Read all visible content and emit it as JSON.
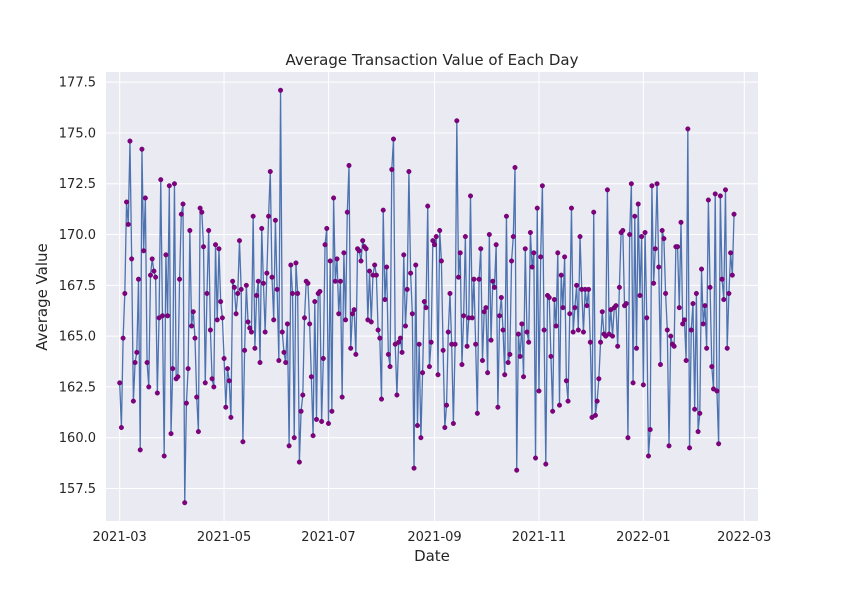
{
  "chart_data": {
    "type": "line",
    "title": "Average Transaction Value of Each Day",
    "xlabel": "Date",
    "ylabel": "Average Value",
    "x_range": [
      "2021-02-21",
      "2022-03-09"
    ],
    "ylim": [
      155.9,
      178.0
    ],
    "x_ticks": [
      {
        "date": "2021-03-01",
        "label": "2021-03"
      },
      {
        "date": "2021-05-01",
        "label": "2021-05"
      },
      {
        "date": "2021-07-01",
        "label": "2021-07"
      },
      {
        "date": "2021-09-01",
        "label": "2021-09"
      },
      {
        "date": "2021-11-01",
        "label": "2021-11"
      },
      {
        "date": "2022-01-01",
        "label": "2022-01"
      },
      {
        "date": "2022-03-01",
        "label": "2022-03"
      }
    ],
    "y_ticks": [
      {
        "value": 157.5,
        "label": "157.5"
      },
      {
        "value": 160.0,
        "label": "160.0"
      },
      {
        "value": 162.5,
        "label": "162.5"
      },
      {
        "value": 165.0,
        "label": "165.0"
      },
      {
        "value": 167.5,
        "label": "167.5"
      },
      {
        "value": 170.0,
        "label": "170.0"
      },
      {
        "value": 172.5,
        "label": "172.5"
      },
      {
        "value": 175.0,
        "label": "175.0"
      },
      {
        "value": 177.5,
        "label": "177.5"
      }
    ],
    "grid": true,
    "colors": {
      "background": "#eaeaf2",
      "grid": "#ffffff",
      "line": "#4c72b0",
      "marker": "#800080"
    },
    "series": [
      {
        "start_date": "2021-03-01",
        "values": [
          162.7,
          160.5,
          164.9,
          167.1,
          171.6,
          170.5,
          174.6,
          168.8,
          161.8,
          163.7,
          164.2,
          167.8,
          159.4,
          174.2,
          169.2,
          171.8,
          163.7,
          162.5,
          168.0,
          168.8,
          168.2,
          167.9,
          162.2,
          165.9,
          172.7,
          166.0,
          159.1,
          169.0,
          166.0,
          172.4,
          160.2,
          163.4,
          172.5,
          162.9,
          163.0,
          167.8,
          171.0,
          171.5,
          156.8,
          161.7,
          163.4,
          170.2,
          165.5,
          166.2,
          164.9,
          162.0,
          160.3,
          171.3,
          171.1,
          169.4,
          162.7,
          167.1,
          170.2,
          165.3,
          162.9,
          162.5,
          169.5,
          165.8,
          169.3,
          166.7,
          165.9,
          163.9,
          161.5,
          163.4,
          162.8,
          161.0,
          167.7,
          167.4,
          166.1,
          167.1,
          169.7,
          167.3,
          159.8,
          164.3,
          167.5,
          165.7,
          165.4,
          165.2,
          170.9,
          164.4,
          167.0,
          167.7,
          163.7,
          170.3,
          167.6,
          165.2,
          168.1,
          170.9,
          173.1,
          167.9,
          165.8,
          170.7,
          167.3,
          163.8,
          177.1,
          165.2,
          164.2,
          163.7,
          165.6,
          159.6,
          168.5,
          167.1,
          160.0,
          168.6,
          167.1,
          158.8,
          161.3,
          162.1,
          165.9,
          167.7,
          167.6,
          165.6,
          163.0,
          160.1,
          166.7,
          160.9,
          167.1,
          167.2,
          160.8,
          163.9,
          169.5,
          170.3,
          160.7,
          168.7,
          161.3,
          171.8,
          167.7,
          168.8,
          166.1,
          167.7,
          162.0,
          169.1,
          165.8,
          171.1,
          173.4,
          164.4,
          166.1,
          166.3,
          164.1,
          169.3,
          169.2,
          168.7,
          169.7,
          169.4,
          169.3,
          165.8,
          168.2,
          165.7,
          168.0,
          168.5,
          168.0,
          165.3,
          164.9,
          161.9,
          171.2,
          166.8,
          168.4,
          164.1,
          163.5,
          173.2,
          174.7,
          164.6,
          162.1,
          164.7,
          164.9,
          164.2,
          169.0,
          165.5,
          167.3,
          173.1,
          168.1,
          166.1,
          158.5,
          168.5,
          160.6,
          164.6,
          160.0,
          163.2,
          166.7,
          166.4,
          171.4,
          163.5,
          164.7,
          169.7,
          169.5,
          169.9,
          163.1,
          170.2,
          168.7,
          164.3,
          160.5,
          161.6,
          165.2,
          167.1,
          164.6,
          160.7,
          164.6,
          175.6,
          167.9,
          169.1,
          163.6,
          166.0,
          169.9,
          164.5,
          165.9,
          171.9,
          165.9,
          167.8,
          164.6,
          161.2,
          167.8,
          169.3,
          163.8,
          166.2,
          166.4,
          163.2,
          170.0,
          164.8,
          167.7,
          167.4,
          169.5,
          161.5,
          166.0,
          166.9,
          165.3,
          163.1,
          170.9,
          163.7,
          164.1,
          168.7,
          169.9,
          173.3,
          158.4,
          165.1,
          164.0,
          165.6,
          163.0,
          169.3,
          165.2,
          164.7,
          170.1,
          168.4,
          169.1,
          159.0,
          171.3,
          162.3,
          168.9,
          172.4,
          165.3,
          158.7,
          167.0,
          166.9,
          164.0,
          161.3,
          166.8,
          165.5,
          169.1,
          161.6,
          168.0,
          166.4,
          168.9,
          162.8,
          161.8,
          166.1,
          171.3,
          165.2,
          166.4,
          167.5,
          165.3,
          169.9,
          167.3,
          165.2,
          167.3,
          166.5,
          167.3,
          164.7,
          161.0,
          171.1,
          161.1,
          161.8,
          162.9,
          164.7,
          166.2,
          165.1,
          165.0,
          172.2,
          165.1,
          166.3,
          165.0,
          166.4,
          166.5,
          164.5,
          167.4,
          170.1,
          170.2,
          166.5,
          166.6,
          160.0,
          170.0,
          172.5,
          162.7,
          170.9,
          164.4,
          171.5,
          167.0,
          169.9,
          162.6,
          170.1,
          165.9,
          159.1,
          160.4,
          172.4,
          167.6,
          169.3,
          172.5,
          168.4,
          163.6,
          170.2,
          169.8,
          167.1,
          165.3,
          159.6,
          165.0,
          164.6,
          164.5,
          169.4,
          169.4,
          166.4,
          170.6,
          165.6,
          165.8,
          163.8,
          175.2,
          159.5,
          165.3,
          166.6,
          161.4,
          167.1,
          160.3,
          161.2,
          168.3,
          165.6,
          166.5,
          164.4,
          171.7,
          167.4,
          163.5,
          162.4,
          172.0,
          162.3,
          159.7,
          171.9,
          167.8,
          166.8,
          172.2,
          164.4,
          167.1,
          169.1,
          168.0,
          171.0
        ]
      }
    ]
  }
}
